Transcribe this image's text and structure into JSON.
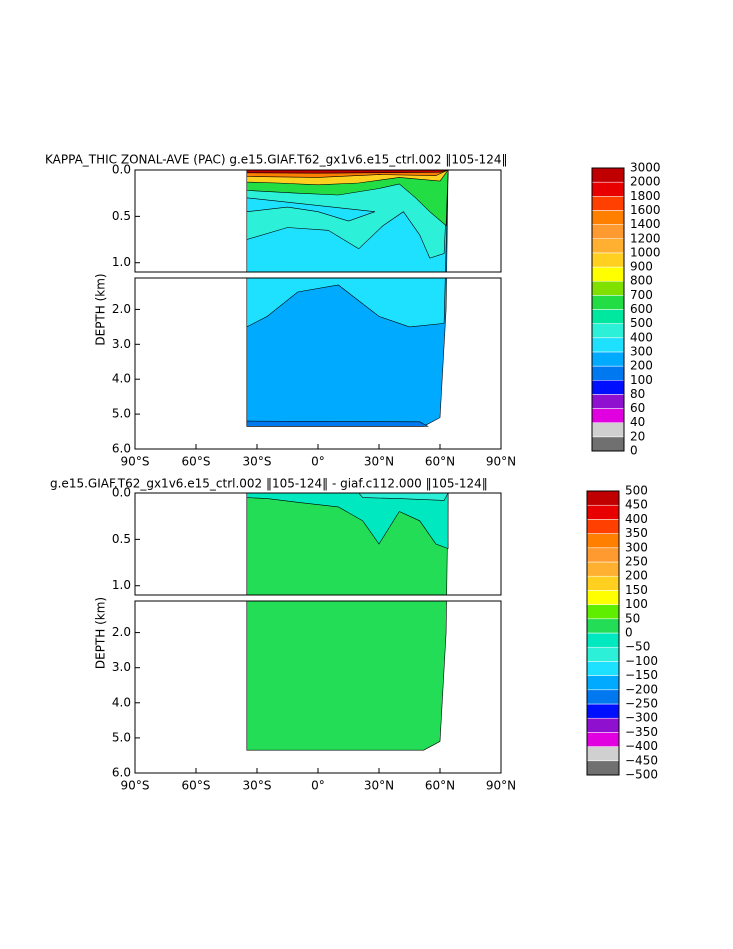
{
  "chart_data": [
    {
      "type": "contour",
      "title": "KAPPA_THIC ZONAL-AVE (PAC) g.e15.GIAF.T62_gx1v6.e15_ctrl.002 ‖105-124‖",
      "ylabel": "DEPTH (km)",
      "xlim": [
        -90,
        90
      ],
      "xticks": [
        {
          "value": -90,
          "label": "90°S"
        },
        {
          "value": -60,
          "label": "60°S"
        },
        {
          "value": -30,
          "label": "30°S"
        },
        {
          "value": 0,
          "label": "0°"
        },
        {
          "value": 30,
          "label": "30°N"
        },
        {
          "value": 60,
          "label": "60°N"
        },
        {
          "value": 90,
          "label": "90°N"
        }
      ],
      "ylim": [
        0,
        6
      ],
      "ybreak": 1.1,
      "yticks": [
        {
          "value": 0,
          "label": "0.0"
        },
        {
          "value": 0.5,
          "label": "0.5"
        },
        {
          "value": 1,
          "label": "1.0"
        },
        {
          "value": 2,
          "label": "2.0"
        },
        {
          "value": 3,
          "label": "3.0"
        },
        {
          "value": 4,
          "label": "4.0"
        },
        {
          "value": 5,
          "label": "5.0"
        },
        {
          "value": 6,
          "label": "6.0"
        }
      ],
      "levels": [
        0,
        20,
        40,
        60,
        80,
        100,
        200,
        300,
        400,
        500,
        600,
        700,
        800,
        900,
        1000,
        1200,
        1400,
        1600,
        1800,
        2000,
        3000
      ],
      "colors": [
        "#707070",
        "#d0d0d0",
        "#e000e0",
        "#9010d0",
        "#0010ff",
        "#0078f0",
        "#00aaff",
        "#1ee0ff",
        "#2cf0d8",
        "#00e8a0",
        "#22dd44",
        "#80e000",
        "#ffff00",
        "#ffd020",
        "#ffb030",
        "#ff9a30",
        "#ff8000",
        "#ff4000",
        "#e80000",
        "#c00000"
      ]
    },
    {
      "type": "contour",
      "title": "g.e15.GIAF.T62_gx1v6.e15_ctrl.002 ‖105-124‖ - giaf.c112.000 ‖105-124‖",
      "ylabel": "DEPTH (km)",
      "xlim": [
        -90,
        90
      ],
      "xticks": [
        {
          "value": -90,
          "label": "90°S"
        },
        {
          "value": -60,
          "label": "60°S"
        },
        {
          "value": -30,
          "label": "30°S"
        },
        {
          "value": 0,
          "label": "0°"
        },
        {
          "value": 30,
          "label": "30°N"
        },
        {
          "value": 60,
          "label": "60°N"
        },
        {
          "value": 90,
          "label": "90°N"
        }
      ],
      "ylim": [
        0,
        6
      ],
      "ybreak": 1.1,
      "yticks": [
        {
          "value": 0,
          "label": "0.0"
        },
        {
          "value": 0.5,
          "label": "0.5"
        },
        {
          "value": 1,
          "label": "1.0"
        },
        {
          "value": 2,
          "label": "2.0"
        },
        {
          "value": 3,
          "label": "3.0"
        },
        {
          "value": 4,
          "label": "4.0"
        },
        {
          "value": 5,
          "label": "5.0"
        },
        {
          "value": 6,
          "label": "6.0"
        }
      ],
      "levels": [
        {
          "value": -500,
          "label": "−500"
        },
        {
          "value": -450,
          "label": "−450"
        },
        {
          "value": -400,
          "label": "−400"
        },
        {
          "value": -350,
          "label": "−350"
        },
        {
          "value": -300,
          "label": "−300"
        },
        {
          "value": -250,
          "label": "−250"
        },
        {
          "value": -200,
          "label": "−200"
        },
        {
          "value": -150,
          "label": "−150"
        },
        {
          "value": -100,
          "label": "−100"
        },
        {
          "value": -50,
          "label": "−50"
        },
        0,
        50,
        100,
        150,
        200,
        250,
        300,
        350,
        400,
        450,
        500
      ],
      "colors": [
        "#707070",
        "#d0d0d0",
        "#e000e0",
        "#9010d0",
        "#0010ff",
        "#0078f0",
        "#00aaff",
        "#1ee0ff",
        "#2cf0d8",
        "#00e8c0",
        "#22dd55",
        "#60ee00",
        "#ffff00",
        "#ffd020",
        "#ffb030",
        "#ff9a30",
        "#ff8000",
        "#ff4000",
        "#e80000",
        "#c00000"
      ]
    }
  ]
}
